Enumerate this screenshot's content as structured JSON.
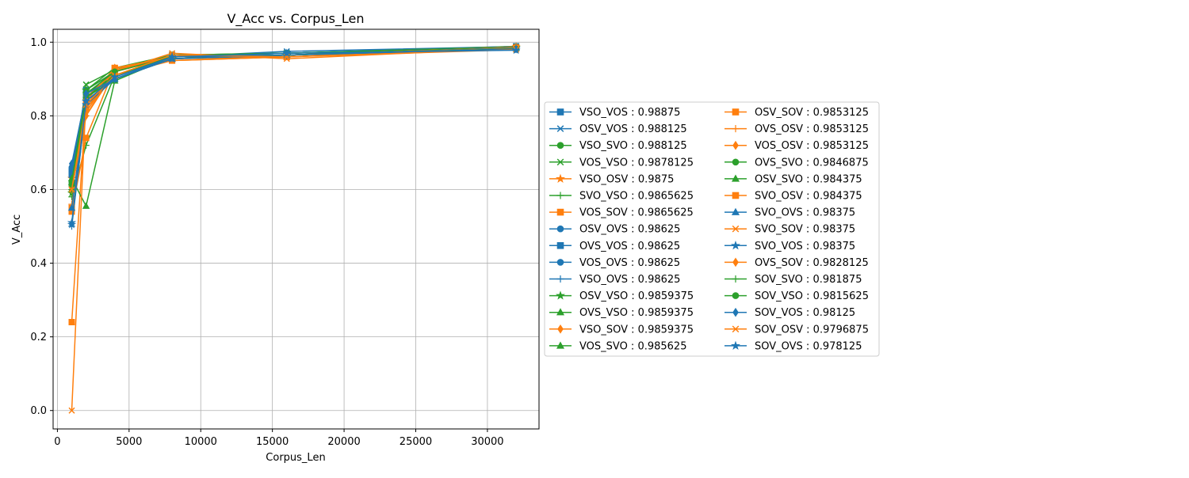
{
  "colors": {
    "blue": "#1f77b4",
    "orange": "#ff7f0e",
    "green": "#2ca02c",
    "grid": "#b0b0b0",
    "axes": "#000000"
  },
  "chart_data": {
    "type": "line",
    "title": "V_Acc vs. Corpus_Len",
    "xlabel": "Corpus_Len",
    "ylabel": "V_Acc",
    "xlim": [
      -300,
      33600
    ],
    "ylim": [
      -0.05,
      1.035
    ],
    "xticks": [
      0,
      5000,
      10000,
      15000,
      20000,
      25000,
      30000
    ],
    "yticks": [
      0.0,
      0.2,
      0.4,
      0.6,
      0.8,
      1.0
    ],
    "xtick_labels": [
      "0",
      "5000",
      "10000",
      "15000",
      "20000",
      "25000",
      "30000"
    ],
    "ytick_labels": [
      "0.0",
      "0.2",
      "0.4",
      "0.6",
      "0.8",
      "1.0"
    ],
    "grid": true,
    "legend_position": "right, outside plot",
    "x": [
      1000,
      2000,
      4000,
      8000,
      16000,
      32000
    ],
    "series": [
      {
        "name": "VSO_VOS : 0.98875",
        "color": "blue",
        "marker": "square",
        "values": [
          0.65,
          0.87,
          0.92,
          0.965,
          0.97,
          0.98875
        ]
      },
      {
        "name": "OSV_VOS : 0.988125",
        "color": "blue",
        "marker": "x",
        "values": [
          0.6,
          0.85,
          0.91,
          0.96,
          0.975,
          0.988125
        ]
      },
      {
        "name": "VSO_SVO : 0.988125",
        "color": "green",
        "marker": "circle",
        "values": [
          0.62,
          0.86,
          0.92,
          0.96,
          0.97,
          0.988125
        ]
      },
      {
        "name": "VOS_VSO : 0.9878125",
        "color": "green",
        "marker": "x",
        "values": [
          0.6,
          0.885,
          0.925,
          0.965,
          0.97,
          0.9878125
        ]
      },
      {
        "name": "VSO_OSV : 0.9875",
        "color": "orange",
        "marker": "star",
        "values": [
          0.63,
          0.82,
          0.92,
          0.96,
          0.965,
          0.9875
        ]
      },
      {
        "name": "SVO_VSO : 0.9865625",
        "color": "green",
        "marker": "plus",
        "values": [
          0.58,
          0.72,
          0.91,
          0.955,
          0.965,
          0.9865625
        ]
      },
      {
        "name": "VOS_SOV : 0.9865625",
        "color": "orange",
        "marker": "square",
        "values": [
          0.24,
          0.84,
          0.93,
          0.95,
          0.96,
          0.9865625
        ]
      },
      {
        "name": "OSV_OVS : 0.98625",
        "color": "blue",
        "marker": "circle",
        "values": [
          0.62,
          0.86,
          0.91,
          0.96,
          0.97,
          0.98625
        ]
      },
      {
        "name": "OVS_VOS : 0.98625",
        "color": "blue",
        "marker": "square",
        "values": [
          0.64,
          0.85,
          0.9,
          0.955,
          0.965,
          0.98625
        ]
      },
      {
        "name": "VOS_OVS : 0.98625",
        "color": "blue",
        "marker": "circle",
        "values": [
          0.66,
          0.86,
          0.9,
          0.96,
          0.97,
          0.98625
        ]
      },
      {
        "name": "VSO_OVS : 0.98625",
        "color": "blue",
        "marker": "plus",
        "values": [
          0.5,
          0.83,
          0.9,
          0.955,
          0.965,
          0.98625
        ]
      },
      {
        "name": "OSV_VSO : 0.9859375",
        "color": "green",
        "marker": "star",
        "values": [
          0.59,
          0.87,
          0.92,
          0.96,
          0.965,
          0.9859375
        ]
      },
      {
        "name": "OVS_VSO : 0.9859375",
        "color": "green",
        "marker": "triangle",
        "values": [
          0.63,
          0.555,
          0.895,
          0.96,
          0.965,
          0.9859375
        ]
      },
      {
        "name": "VSO_SOV : 0.9859375",
        "color": "orange",
        "marker": "diamond",
        "values": [
          0.6,
          0.81,
          0.925,
          0.955,
          0.965,
          0.9859375
        ]
      },
      {
        "name": "VOS_SVO : 0.985625",
        "color": "green",
        "marker": "triangle",
        "values": [
          0.62,
          0.87,
          0.93,
          0.965,
          0.97,
          0.985625
        ]
      },
      {
        "name": "OSV_SOV : 0.9853125",
        "color": "orange",
        "marker": "square",
        "values": [
          0.54,
          0.74,
          0.93,
          0.955,
          0.96,
          0.9853125
        ]
      },
      {
        "name": "OVS_OSV : 0.9853125",
        "color": "orange",
        "marker": "plus",
        "values": [
          0.56,
          0.8,
          0.92,
          0.96,
          0.965,
          0.9853125
        ]
      },
      {
        "name": "VOS_OSV : 0.9853125",
        "color": "orange",
        "marker": "diamond",
        "values": [
          0.61,
          0.83,
          0.92,
          0.96,
          0.965,
          0.9853125
        ]
      },
      {
        "name": "OVS_SVO : 0.9846875",
        "color": "green",
        "marker": "circle",
        "values": [
          0.62,
          0.86,
          0.91,
          0.96,
          0.965,
          0.9846875
        ]
      },
      {
        "name": "OSV_SVO : 0.984375",
        "color": "green",
        "marker": "triangle",
        "values": [
          0.6,
          0.85,
          0.9,
          0.955,
          0.965,
          0.984375
        ]
      },
      {
        "name": "SVO_OSV : 0.984375",
        "color": "orange",
        "marker": "square",
        "values": [
          0.55,
          0.82,
          0.91,
          0.95,
          0.96,
          0.984375
        ]
      },
      {
        "name": "SVO_OVS : 0.98375",
        "color": "blue",
        "marker": "triangle",
        "values": [
          0.55,
          0.84,
          0.9,
          0.955,
          0.965,
          0.98375
        ]
      },
      {
        "name": "SVO_SOV : 0.98375",
        "color": "orange",
        "marker": "x",
        "values": [
          0.0,
          0.85,
          0.92,
          0.97,
          0.955,
          0.98375
        ]
      },
      {
        "name": "SVO_VOS : 0.98375",
        "color": "blue",
        "marker": "star",
        "values": [
          0.505,
          0.83,
          0.9,
          0.955,
          0.965,
          0.98375
        ]
      },
      {
        "name": "OVS_SOV : 0.9828125",
        "color": "orange",
        "marker": "diamond",
        "values": [
          0.6,
          0.8,
          0.93,
          0.96,
          0.965,
          0.9828125
        ]
      },
      {
        "name": "SOV_SVO : 0.981875",
        "color": "green",
        "marker": "plus",
        "values": [
          0.6,
          0.85,
          0.91,
          0.96,
          0.965,
          0.981875
        ]
      },
      {
        "name": "SOV_VSO : 0.9815625",
        "color": "green",
        "marker": "circle",
        "values": [
          0.61,
          0.86,
          0.92,
          0.96,
          0.965,
          0.9815625
        ]
      },
      {
        "name": "SOV_VOS : 0.98125",
        "color": "blue",
        "marker": "diamond",
        "values": [
          0.67,
          0.86,
          0.9,
          0.96,
          0.965,
          0.98125
        ]
      },
      {
        "name": "SOV_OSV : 0.9796875",
        "color": "orange",
        "marker": "x",
        "values": [
          0.6,
          0.83,
          0.91,
          0.965,
          0.96,
          0.9796875
        ]
      },
      {
        "name": "SOV_OVS : 0.978125",
        "color": "blue",
        "marker": "star",
        "values": [
          0.51,
          0.84,
          0.905,
          0.96,
          0.97,
          0.978125
        ]
      }
    ]
  }
}
